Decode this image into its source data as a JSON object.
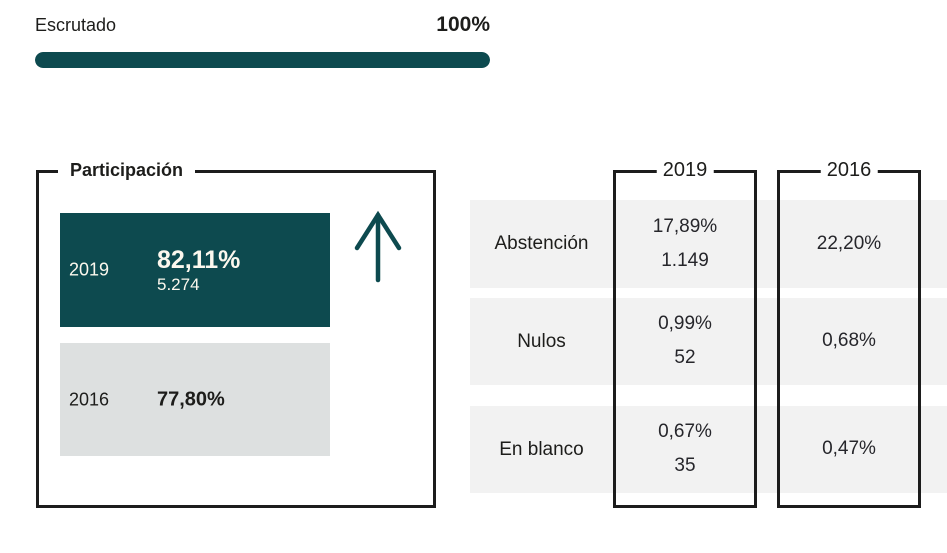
{
  "escrutado": {
    "label": "Escrutado",
    "value": "100%",
    "percent": 100
  },
  "participacion": {
    "title": "Participación",
    "bars": [
      {
        "year": "2019",
        "percent": "82,11%",
        "votes": "5.274"
      },
      {
        "year": "2016",
        "percent": "77,80%"
      }
    ],
    "trend_icon": "arrow-up"
  },
  "comparison_table": {
    "columns": [
      "2019",
      "2016"
    ],
    "rows": [
      {
        "label": "Abstención",
        "col2019": {
          "percent": "17,89%",
          "count": "1.149"
        },
        "col2016": {
          "percent": "22,20%"
        }
      },
      {
        "label": "Nulos",
        "col2019": {
          "percent": "0,99%",
          "count": "52"
        },
        "col2016": {
          "percent": "0,68%"
        }
      },
      {
        "label": "En blanco",
        "col2019": {
          "percent": "0,67%",
          "count": "35"
        },
        "col2016": {
          "percent": "0,47%"
        }
      }
    ]
  },
  "colors": {
    "teal": "#0d4a4f",
    "bar2016-bg": "#dde0e0",
    "row-bg": "#f2f2f2",
    "line": "#1c1c1c",
    "text-dark": "#1d1d1b",
    "text-value": "#26262b",
    "text-on-teal": "#fcf8ee"
  },
  "chart_data": [
    {
      "type": "bar",
      "title": "Escrutado",
      "categories": [
        "Escrutado"
      ],
      "values": [
        100
      ],
      "value_labels": [
        "100%"
      ],
      "xlim": [
        0,
        100
      ]
    },
    {
      "type": "bar",
      "title": "Participación",
      "categories": [
        "2019",
        "2016"
      ],
      "values": [
        82.11,
        77.8
      ],
      "value_labels": [
        "82,11%",
        "77,80%"
      ],
      "counts": [
        5274,
        null
      ],
      "annotations": [
        "upward trend arrow next to 2019 bar"
      ],
      "xlim": [
        0,
        100
      ]
    },
    {
      "type": "table",
      "columns": [
        "",
        "2019",
        "2016"
      ],
      "rows": [
        [
          "Abstención",
          "17,89% (1.149)",
          "22,20%"
        ],
        [
          "Nulos",
          "0,99% (52)",
          "0,68%"
        ],
        [
          "En blanco",
          "0,67% (35)",
          "0,47%"
        ]
      ]
    }
  ]
}
